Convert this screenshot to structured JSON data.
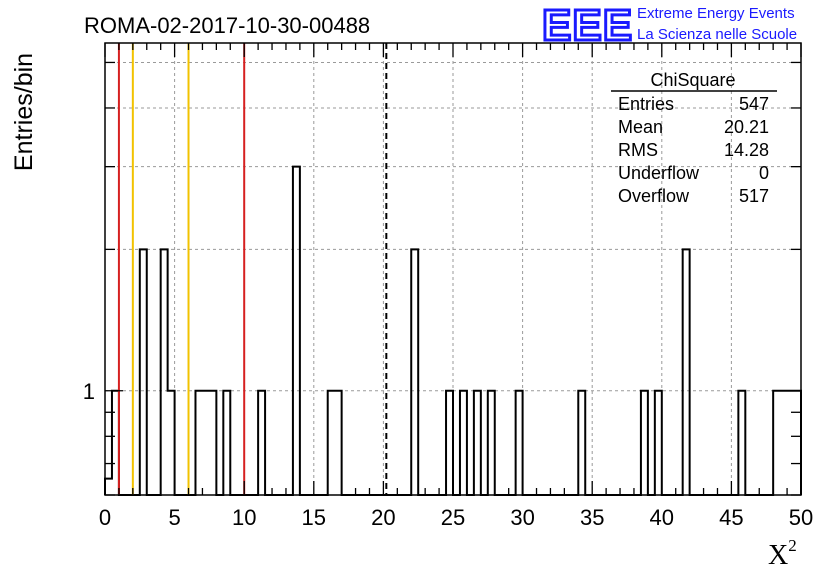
{
  "chart_data": {
    "type": "bar",
    "title": "ROMA-02-2017-10-30-00488",
    "xlabel": "X",
    "xlabel_sup": "2",
    "ylabel": "Entries/bin",
    "xlim": [
      0,
      50
    ],
    "ylim": [
      0.6,
      5.5
    ],
    "log_y": true,
    "grid": true,
    "bin_width": 0.5,
    "x_ticks": [
      0,
      5,
      10,
      15,
      20,
      25,
      30,
      35,
      40,
      45,
      50
    ],
    "y_tick_labels": [
      {
        "value": 1,
        "label": "1"
      }
    ],
    "bins": [
      {
        "x": 0.0,
        "value": 0.65
      },
      {
        "x": 0.5,
        "value": 1
      },
      {
        "x": 2.5,
        "value": 2
      },
      {
        "x": 4.0,
        "value": 2
      },
      {
        "x": 4.5,
        "value": 1
      },
      {
        "x": 6.5,
        "value": 1
      },
      {
        "x": 7.0,
        "value": 1
      },
      {
        "x": 7.5,
        "value": 1
      },
      {
        "x": 8.5,
        "value": 1
      },
      {
        "x": 11.0,
        "value": 1
      },
      {
        "x": 13.5,
        "value": 3
      },
      {
        "x": 16.0,
        "value": 1
      },
      {
        "x": 16.5,
        "value": 1
      },
      {
        "x": 22.0,
        "value": 2
      },
      {
        "x": 24.5,
        "value": 1
      },
      {
        "x": 25.5,
        "value": 1
      },
      {
        "x": 26.5,
        "value": 1
      },
      {
        "x": 27.5,
        "value": 1
      },
      {
        "x": 29.5,
        "value": 1
      },
      {
        "x": 34.0,
        "value": 1
      },
      {
        "x": 38.5,
        "value": 1
      },
      {
        "x": 39.5,
        "value": 1
      },
      {
        "x": 41.5,
        "value": 2
      },
      {
        "x": 45.5,
        "value": 1
      },
      {
        "x": 48.0,
        "value": 1
      },
      {
        "x": 48.5,
        "value": 1
      },
      {
        "x": 49.0,
        "value": 1
      },
      {
        "x": 49.5,
        "value": 1
      }
    ],
    "vlines": [
      {
        "x": 1,
        "color": "#d62020",
        "style": "solid"
      },
      {
        "x": 2,
        "color": "#f2c200",
        "style": "solid"
      },
      {
        "x": 6,
        "color": "#f2c200",
        "style": "solid"
      },
      {
        "x": 10,
        "color": "#d62020",
        "style": "solid"
      },
      {
        "x": 20.21,
        "color": "#000000",
        "style": "dashed"
      }
    ],
    "legend_placement": "top-right",
    "stats": {
      "title": "ChiSquare",
      "rows": [
        {
          "label": "Entries",
          "value": "547"
        },
        {
          "label": "Mean",
          "value": "20.21"
        },
        {
          "label": "RMS",
          "value": "14.28"
        },
        {
          "label": "Underflow",
          "value": "0"
        },
        {
          "label": "Overflow",
          "value": "517"
        }
      ]
    }
  },
  "logo": {
    "mark": "EEE",
    "line1": "Extreme Energy Events",
    "line2": "La Scienza nelle Scuole",
    "color": "#1a1aff"
  }
}
